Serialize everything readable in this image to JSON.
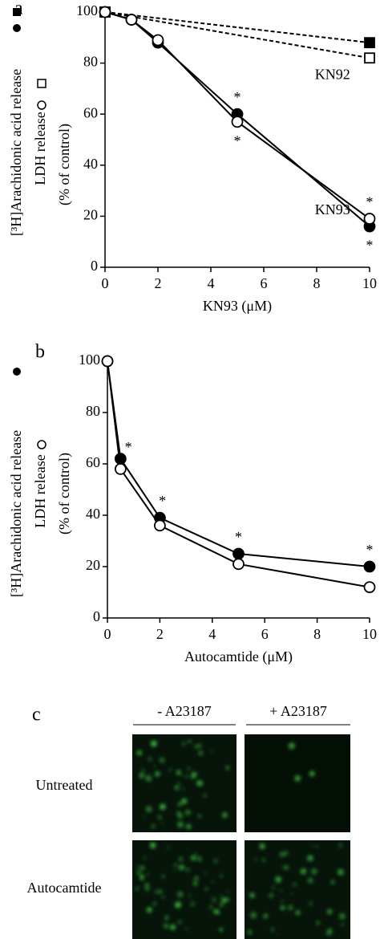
{
  "chart_data": [
    {
      "type": "line",
      "panel_label": "a",
      "ylabel": [
        "[³H]Arachidonic acid release",
        "LDH release",
        "(% of control)"
      ],
      "xlabel": "KN93 (μM)",
      "xlim": [
        0,
        10
      ],
      "xticks": [
        0,
        2,
        4,
        6,
        8,
        10
      ],
      "ylim": [
        0,
        100
      ],
      "yticks": [
        0,
        20,
        40,
        60,
        80,
        100
      ],
      "series": [
        {
          "x": [
            0,
            10
          ],
          "values": [
            100,
            88
          ],
          "color": "#000000",
          "marker": "square",
          "marker_fill": "#000000",
          "dashed": true
        },
        {
          "x": [
            0,
            10
          ],
          "values": [
            100,
            82
          ],
          "color": "#000000",
          "marker": "square",
          "marker_fill": "#ffffff",
          "dashed": true
        },
        {
          "x": [
            0,
            1,
            2,
            5,
            10
          ],
          "values": [
            100,
            97,
            88,
            60,
            16
          ],
          "color": "#000000",
          "marker": "circle",
          "marker_fill": "#000000",
          "dashed": false
        },
        {
          "x": [
            0,
            1,
            2,
            5,
            10
          ],
          "values": [
            100,
            97,
            89,
            57,
            19
          ],
          "color": "#000000",
          "marker": "circle",
          "marker_fill": "#ffffff",
          "dashed": false
        }
      ],
      "annotations": [
        {
          "text": "*",
          "x": 5,
          "y": 66
        },
        {
          "text": "*",
          "x": 5,
          "y": 49
        },
        {
          "text": "*",
          "x": 10,
          "y": 25
        },
        {
          "text": "*",
          "x": 10,
          "y": 8
        },
        {
          "text": "KN92",
          "x": 8.6,
          "y": 75
        },
        {
          "text": "KN93",
          "x": 8.6,
          "y": 22
        }
      ]
    },
    {
      "type": "line",
      "panel_label": "b",
      "ylabel": [
        "[³H]Arachidonic acid release",
        "LDH release",
        "(% of control)"
      ],
      "xlabel": "Autocamtide (μM)",
      "xlim": [
        0,
        10
      ],
      "xticks": [
        0,
        2,
        4,
        6,
        8,
        10
      ],
      "ylim": [
        0,
        100
      ],
      "yticks": [
        0,
        20,
        40,
        60,
        80,
        100
      ],
      "series": [
        {
          "x": [
            0,
            0.5,
            2,
            5,
            10
          ],
          "values": [
            100,
            62,
            39,
            25,
            20
          ],
          "color": "#000000",
          "marker": "circle",
          "marker_fill": "#000000",
          "dashed": false
        },
        {
          "x": [
            0,
            0.5,
            2,
            5,
            10
          ],
          "values": [
            100,
            58,
            36,
            21,
            12
          ],
          "color": "#000000",
          "marker": "circle",
          "marker_fill": "#ffffff",
          "dashed": false
        }
      ],
      "annotations": [
        {
          "text": "*",
          "x": 0.8,
          "y": 66
        },
        {
          "text": "*",
          "x": 2.1,
          "y": 45
        },
        {
          "text": "*",
          "x": 5,
          "y": 31
        },
        {
          "text": "*",
          "x": 10,
          "y": 26
        }
      ]
    }
  ],
  "panel_c": {
    "label": "c",
    "columns": [
      "- A23187",
      "+ A23187"
    ],
    "rows": [
      "Untreated",
      "Autocamtide"
    ]
  }
}
